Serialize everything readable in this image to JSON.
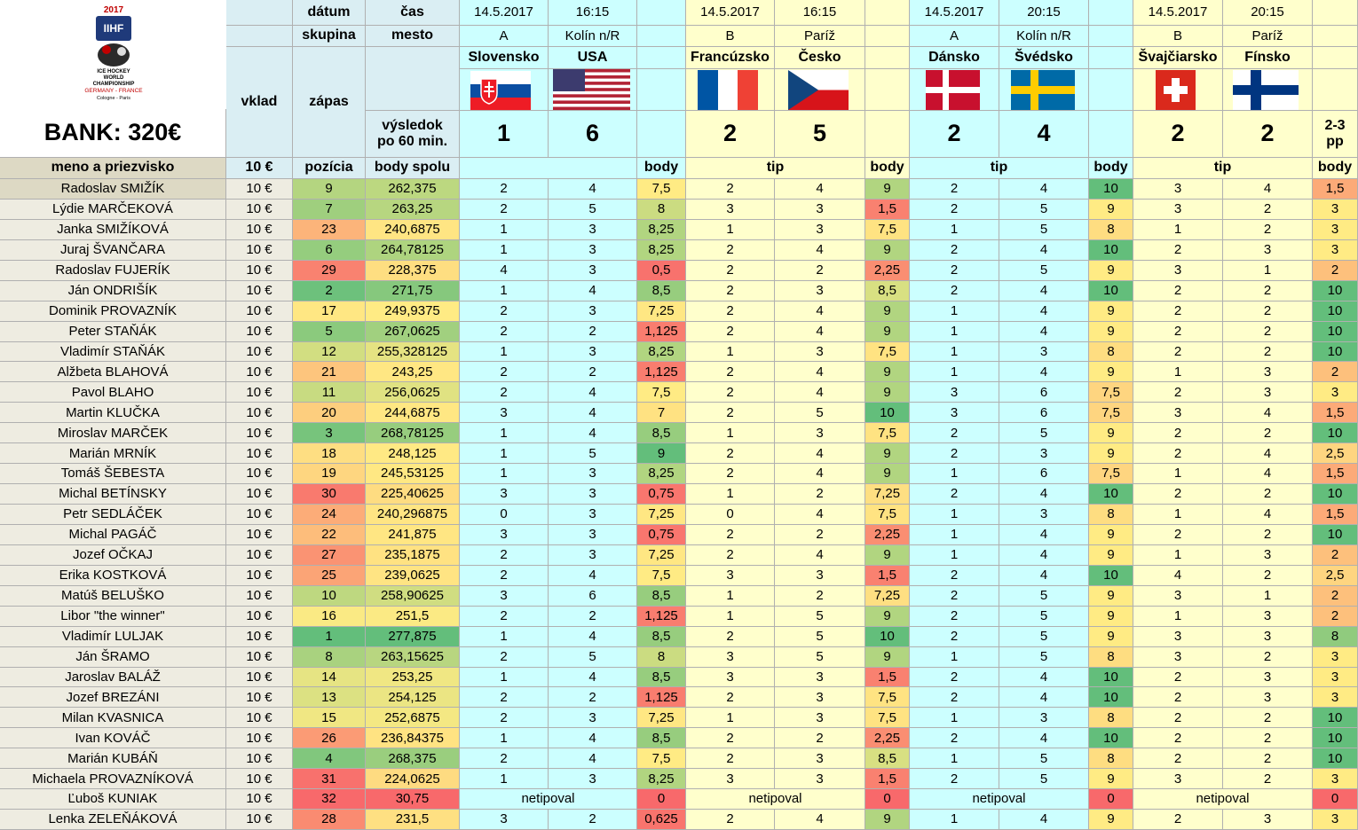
{
  "logo": {
    "year": "2017",
    "org": "IIHF",
    "lines": [
      "ICE HOCKEY",
      "WORLD",
      "CHAMPIONSHIP"
    ],
    "hosts": "GERMANY - FRANCE",
    "cities": "Cologne - Paris"
  },
  "bank": "BANK: 320€",
  "labels": {
    "date": "dátum",
    "time": "čas",
    "group": "skupina",
    "city": "mesto",
    "stake": "vklad",
    "match": "zápas",
    "result": [
      "výsledok",
      "po 60 min."
    ],
    "name": "meno a priezvisko",
    "stake_amount": "10 €",
    "position": "pozícia",
    "total": "body spolu"
  },
  "matches": [
    {
      "date": "14.5.2017",
      "time": "16:15",
      "group": "A",
      "city": "Kolín n/R",
      "home": "Slovensko",
      "away": "USA",
      "score": [
        1,
        6
      ],
      "points_header": "body"
    },
    {
      "date": "14.5.2017",
      "time": "16:15",
      "group": "B",
      "city": "Paríž",
      "home": "Francúzsko",
      "away": "Česko",
      "score": [
        2,
        5
      ],
      "tip_header": "tip",
      "points_header": "body"
    },
    {
      "date": "14.5.2017",
      "time": "20:15",
      "group": "A",
      "city": "Kolín n/R",
      "home": "Dánsko",
      "away": "Švédsko",
      "score": [
        2,
        4
      ],
      "tip_header": "tip",
      "points_header": "body"
    },
    {
      "date": "14.5.2017",
      "time": "20:15",
      "group": "B",
      "city": "Paríž",
      "home": "Švajčiarsko",
      "away": "Fínsko",
      "score": [
        2,
        2
      ],
      "tip_header": "tip",
      "points_header": "body",
      "note": [
        "2-3",
        "pp"
      ]
    }
  ],
  "rows": [
    {
      "name": "Radoslav SMIŽÍK",
      "stake": "10 €",
      "position": 9,
      "total": "262,375",
      "matches": [
        {
          "tips": [
            2,
            4
          ],
          "points": "7,5"
        },
        {
          "tips": [
            2,
            4
          ],
          "points": "9"
        },
        {
          "tips": [
            2,
            4
          ],
          "points": "10"
        },
        {
          "tips": [
            3,
            4
          ],
          "points": "1,5"
        }
      ]
    },
    {
      "name": "Lýdie MARČEKOVÁ",
      "stake": "10 €",
      "position": 7,
      "total": "263,25",
      "matches": [
        {
          "tips": [
            2,
            5
          ],
          "points": "8"
        },
        {
          "tips": [
            3,
            3
          ],
          "points": "1,5"
        },
        {
          "tips": [
            2,
            5
          ],
          "points": "9"
        },
        {
          "tips": [
            3,
            2
          ],
          "points": "3"
        }
      ]
    },
    {
      "name": "Janka SMIŽÍKOVÁ",
      "stake": "10 €",
      "position": 23,
      "total": "240,6875",
      "matches": [
        {
          "tips": [
            1,
            3
          ],
          "points": "8,25"
        },
        {
          "tips": [
            1,
            3
          ],
          "points": "7,5"
        },
        {
          "tips": [
            1,
            5
          ],
          "points": "8"
        },
        {
          "tips": [
            1,
            2
          ],
          "points": "3"
        }
      ]
    },
    {
      "name": "Juraj ŠVANČARA",
      "stake": "10 €",
      "position": 6,
      "total": "264,78125",
      "matches": [
        {
          "tips": [
            1,
            3
          ],
          "points": "8,25"
        },
        {
          "tips": [
            2,
            4
          ],
          "points": "9"
        },
        {
          "tips": [
            2,
            4
          ],
          "points": "10"
        },
        {
          "tips": [
            2,
            3
          ],
          "points": "3"
        }
      ]
    },
    {
      "name": "Radoslav FUJERÍK",
      "stake": "10 €",
      "position": 29,
      "total": "228,375",
      "matches": [
        {
          "tips": [
            4,
            3
          ],
          "points": "0,5"
        },
        {
          "tips": [
            2,
            2
          ],
          "points": "2,25"
        },
        {
          "tips": [
            2,
            5
          ],
          "points": "9"
        },
        {
          "tips": [
            3,
            1
          ],
          "points": "2"
        }
      ]
    },
    {
      "name": "Ján ONDRIŠÍK",
      "stake": "10 €",
      "position": 2,
      "total": "271,75",
      "matches": [
        {
          "tips": [
            1,
            4
          ],
          "points": "8,5"
        },
        {
          "tips": [
            2,
            3
          ],
          "points": "8,5"
        },
        {
          "tips": [
            2,
            4
          ],
          "points": "10"
        },
        {
          "tips": [
            2,
            2
          ],
          "points": "10"
        }
      ]
    },
    {
      "name": "Dominik PROVAZNÍK",
      "stake": "10 €",
      "position": 17,
      "total": "249,9375",
      "matches": [
        {
          "tips": [
            2,
            3
          ],
          "points": "7,25"
        },
        {
          "tips": [
            2,
            4
          ],
          "points": "9"
        },
        {
          "tips": [
            1,
            4
          ],
          "points": "9"
        },
        {
          "tips": [
            2,
            2
          ],
          "points": "10"
        }
      ]
    },
    {
      "name": "Peter STAŇÁK",
      "stake": "10 €",
      "position": 5,
      "total": "267,0625",
      "matches": [
        {
          "tips": [
            2,
            2
          ],
          "points": "1,125"
        },
        {
          "tips": [
            2,
            4
          ],
          "points": "9"
        },
        {
          "tips": [
            1,
            4
          ],
          "points": "9"
        },
        {
          "tips": [
            2,
            2
          ],
          "points": "10"
        }
      ]
    },
    {
      "name": "Vladimír STAŇÁK",
      "stake": "10 €",
      "position": 12,
      "total": "255,328125",
      "matches": [
        {
          "tips": [
            1,
            3
          ],
          "points": "8,25"
        },
        {
          "tips": [
            1,
            3
          ],
          "points": "7,5"
        },
        {
          "tips": [
            1,
            3
          ],
          "points": "8"
        },
        {
          "tips": [
            2,
            2
          ],
          "points": "10"
        }
      ]
    },
    {
      "name": "Alžbeta BLAHOVÁ",
      "stake": "10 €",
      "position": 21,
      "total": "243,25",
      "matches": [
        {
          "tips": [
            2,
            2
          ],
          "points": "1,125"
        },
        {
          "tips": [
            2,
            4
          ],
          "points": "9"
        },
        {
          "tips": [
            1,
            4
          ],
          "points": "9"
        },
        {
          "tips": [
            1,
            3
          ],
          "points": "2"
        }
      ]
    },
    {
      "name": "Pavol BLAHO",
      "stake": "10 €",
      "position": 11,
      "total": "256,0625",
      "matches": [
        {
          "tips": [
            2,
            4
          ],
          "points": "7,5"
        },
        {
          "tips": [
            2,
            4
          ],
          "points": "9"
        },
        {
          "tips": [
            3,
            6
          ],
          "points": "7,5"
        },
        {
          "tips": [
            2,
            3
          ],
          "points": "3"
        }
      ]
    },
    {
      "name": "Martin KLUČKA",
      "stake": "10 €",
      "position": 20,
      "total": "244,6875",
      "matches": [
        {
          "tips": [
            3,
            4
          ],
          "points": "7"
        },
        {
          "tips": [
            2,
            5
          ],
          "points": "10"
        },
        {
          "tips": [
            3,
            6
          ],
          "points": "7,5"
        },
        {
          "tips": [
            3,
            4
          ],
          "points": "1,5"
        }
      ]
    },
    {
      "name": "Miroslav MARČEK",
      "stake": "10 €",
      "position": 3,
      "total": "268,78125",
      "matches": [
        {
          "tips": [
            1,
            4
          ],
          "points": "8,5"
        },
        {
          "tips": [
            1,
            3
          ],
          "points": "7,5"
        },
        {
          "tips": [
            2,
            5
          ],
          "points": "9"
        },
        {
          "tips": [
            2,
            2
          ],
          "points": "10"
        }
      ]
    },
    {
      "name": "Marián MRNÍK",
      "stake": "10 €",
      "position": 18,
      "total": "248,125",
      "matches": [
        {
          "tips": [
            1,
            5
          ],
          "points": "9"
        },
        {
          "tips": [
            2,
            4
          ],
          "points": "9"
        },
        {
          "tips": [
            2,
            3
          ],
          "points": "9"
        },
        {
          "tips": [
            2,
            4
          ],
          "points": "2,5"
        }
      ]
    },
    {
      "name": "Tomáš ŠEBESTA",
      "stake": "10 €",
      "position": 19,
      "total": "245,53125",
      "matches": [
        {
          "tips": [
            1,
            3
          ],
          "points": "8,25"
        },
        {
          "tips": [
            2,
            4
          ],
          "points": "9"
        },
        {
          "tips": [
            1,
            6
          ],
          "points": "7,5"
        },
        {
          "tips": [
            1,
            4
          ],
          "points": "1,5"
        }
      ]
    },
    {
      "name": "Michal BETÍNSKY",
      "stake": "10 €",
      "position": 30,
      "total": "225,40625",
      "matches": [
        {
          "tips": [
            3,
            3
          ],
          "points": "0,75"
        },
        {
          "tips": [
            1,
            2
          ],
          "points": "7,25"
        },
        {
          "tips": [
            2,
            4
          ],
          "points": "10"
        },
        {
          "tips": [
            2,
            2
          ],
          "points": "10"
        }
      ]
    },
    {
      "name": "Petr SEDLÁČEK",
      "stake": "10 €",
      "position": 24,
      "total": "240,296875",
      "matches": [
        {
          "tips": [
            0,
            3
          ],
          "points": "7,25"
        },
        {
          "tips": [
            0,
            4
          ],
          "points": "7,5"
        },
        {
          "tips": [
            1,
            3
          ],
          "points": "8"
        },
        {
          "tips": [
            1,
            4
          ],
          "points": "1,5"
        }
      ]
    },
    {
      "name": "Michal PAGÁČ",
      "stake": "10 €",
      "position": 22,
      "total": "241,875",
      "matches": [
        {
          "tips": [
            3,
            3
          ],
          "points": "0,75"
        },
        {
          "tips": [
            2,
            2
          ],
          "points": "2,25"
        },
        {
          "tips": [
            1,
            4
          ],
          "points": "9"
        },
        {
          "tips": [
            2,
            2
          ],
          "points": "10"
        }
      ]
    },
    {
      "name": "Jozef OČKAJ",
      "stake": "10 €",
      "position": 27,
      "total": "235,1875",
      "matches": [
        {
          "tips": [
            2,
            3
          ],
          "points": "7,25"
        },
        {
          "tips": [
            2,
            4
          ],
          "points": "9"
        },
        {
          "tips": [
            1,
            4
          ],
          "points": "9"
        },
        {
          "tips": [
            1,
            3
          ],
          "points": "2"
        }
      ]
    },
    {
      "name": "Erika KOSTKOVÁ",
      "stake": "10 €",
      "position": 25,
      "total": "239,0625",
      "matches": [
        {
          "tips": [
            2,
            4
          ],
          "points": "7,5"
        },
        {
          "tips": [
            3,
            3
          ],
          "points": "1,5"
        },
        {
          "tips": [
            2,
            4
          ],
          "points": "10"
        },
        {
          "tips": [
            4,
            2
          ],
          "points": "2,5"
        }
      ]
    },
    {
      "name": "Matúš BELUŠKO",
      "stake": "10 €",
      "position": 10,
      "total": "258,90625",
      "matches": [
        {
          "tips": [
            3,
            6
          ],
          "points": "8,5"
        },
        {
          "tips": [
            1,
            2
          ],
          "points": "7,25"
        },
        {
          "tips": [
            2,
            5
          ],
          "points": "9"
        },
        {
          "tips": [
            3,
            1
          ],
          "points": "2"
        }
      ]
    },
    {
      "name": "Libor \"the winner\"",
      "stake": "10 €",
      "position": 16,
      "total": "251,5",
      "matches": [
        {
          "tips": [
            2,
            2
          ],
          "points": "1,125"
        },
        {
          "tips": [
            1,
            5
          ],
          "points": "9"
        },
        {
          "tips": [
            2,
            5
          ],
          "points": "9"
        },
        {
          "tips": [
            1,
            3
          ],
          "points": "2"
        }
      ]
    },
    {
      "name": "Vladimír LULJAK",
      "stake": "10 €",
      "position": 1,
      "total": "277,875",
      "matches": [
        {
          "tips": [
            1,
            4
          ],
          "points": "8,5"
        },
        {
          "tips": [
            2,
            5
          ],
          "points": "10"
        },
        {
          "tips": [
            2,
            5
          ],
          "points": "9"
        },
        {
          "tips": [
            3,
            3
          ],
          "points": "8"
        }
      ]
    },
    {
      "name": "Ján ŠRAMO",
      "stake": "10 €",
      "position": 8,
      "total": "263,15625",
      "matches": [
        {
          "tips": [
            2,
            5
          ],
          "points": "8"
        },
        {
          "tips": [
            3,
            5
          ],
          "points": "9"
        },
        {
          "tips": [
            1,
            5
          ],
          "points": "8"
        },
        {
          "tips": [
            3,
            2
          ],
          "points": "3"
        }
      ]
    },
    {
      "name": "Jaroslav BALÁŽ",
      "stake": "10 €",
      "position": 14,
      "total": "253,25",
      "matches": [
        {
          "tips": [
            1,
            4
          ],
          "points": "8,5"
        },
        {
          "tips": [
            3,
            3
          ],
          "points": "1,5"
        },
        {
          "tips": [
            2,
            4
          ],
          "points": "10"
        },
        {
          "tips": [
            2,
            3
          ],
          "points": "3"
        }
      ]
    },
    {
      "name": "Jozef BREZÁNI",
      "stake": "10 €",
      "position": 13,
      "total": "254,125",
      "matches": [
        {
          "tips": [
            2,
            2
          ],
          "points": "1,125"
        },
        {
          "tips": [
            2,
            3
          ],
          "points": "7,5"
        },
        {
          "tips": [
            2,
            4
          ],
          "points": "10"
        },
        {
          "tips": [
            2,
            3
          ],
          "points": "3"
        }
      ]
    },
    {
      "name": "Milan KVASNICA",
      "stake": "10 €",
      "position": 15,
      "total": "252,6875",
      "matches": [
        {
          "tips": [
            2,
            3
          ],
          "points": "7,25"
        },
        {
          "tips": [
            1,
            3
          ],
          "points": "7,5"
        },
        {
          "tips": [
            1,
            3
          ],
          "points": "8"
        },
        {
          "tips": [
            2,
            2
          ],
          "points": "10"
        }
      ]
    },
    {
      "name": "Ivan KOVÁČ",
      "stake": "10 €",
      "position": 26,
      "total": "236,84375",
      "matches": [
        {
          "tips": [
            1,
            4
          ],
          "points": "8,5"
        },
        {
          "tips": [
            2,
            2
          ],
          "points": "2,25"
        },
        {
          "tips": [
            2,
            4
          ],
          "points": "10"
        },
        {
          "tips": [
            2,
            2
          ],
          "points": "10"
        }
      ]
    },
    {
      "name": "Marián KUBÁŇ",
      "stake": "10 €",
      "position": 4,
      "total": "268,375",
      "matches": [
        {
          "tips": [
            2,
            4
          ],
          "points": "7,5"
        },
        {
          "tips": [
            2,
            3
          ],
          "points": "8,5"
        },
        {
          "tips": [
            1,
            5
          ],
          "points": "8"
        },
        {
          "tips": [
            2,
            2
          ],
          "points": "10"
        }
      ]
    },
    {
      "name": "Michaela PROVAZNÍKOVÁ",
      "stake": "10 €",
      "position": 31,
      "total": "224,0625",
      "matches": [
        {
          "tips": [
            1,
            3
          ],
          "points": "8,25"
        },
        {
          "tips": [
            3,
            3
          ],
          "points": "1,5"
        },
        {
          "tips": [
            2,
            5
          ],
          "points": "9"
        },
        {
          "tips": [
            3,
            2
          ],
          "points": "3"
        }
      ]
    },
    {
      "name": "Ľuboš KUNIAK",
      "stake": "10 €",
      "position": 32,
      "total": "30,75",
      "matches": [
        {
          "tips": "netipoval",
          "points": "0"
        },
        {
          "tips": "netipoval",
          "points": "0"
        },
        {
          "tips": "netipoval",
          "points": "0"
        },
        {
          "tips": "netipoval",
          "points": "0"
        }
      ]
    },
    {
      "name": "Lenka ZELEŇÁKOVÁ",
      "stake": "10 €",
      "position": 28,
      "total": "231,5",
      "matches": [
        {
          "tips": [
            3,
            2
          ],
          "points": "0,625"
        },
        {
          "tips": [
            2,
            4
          ],
          "points": "9"
        },
        {
          "tips": [
            1,
            4
          ],
          "points": "9"
        },
        {
          "tips": [
            2,
            3
          ],
          "points": "3"
        }
      ]
    }
  ]
}
